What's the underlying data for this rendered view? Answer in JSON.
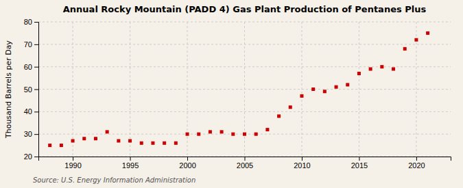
{
  "chart_data": {
    "type": "scatter",
    "title": "Annual Rocky Mountain (PADD 4) Gas Plant Production of Pentanes Plus",
    "ylabel": "Thousand Barrels per Day",
    "annotations": [
      "Source: U.S. Energy Information Administration"
    ],
    "x": [
      1988,
      1989,
      1990,
      1991,
      1992,
      1993,
      1994,
      1995,
      1996,
      1997,
      1998,
      1999,
      2000,
      2001,
      2002,
      2003,
      2004,
      2005,
      2006,
      2007,
      2008,
      2009,
      2010,
      2011,
      2012,
      2013,
      2014,
      2015,
      2016,
      2017,
      2018,
      2019,
      2020,
      2021
    ],
    "values": [
      25,
      25,
      27,
      28,
      28,
      31,
      27,
      27,
      26,
      26,
      26,
      26,
      30,
      30,
      31,
      31,
      30,
      30,
      30,
      32,
      38,
      42,
      47,
      50,
      49,
      51,
      52,
      57,
      59,
      60,
      59,
      68,
      72,
      75
    ],
    "color": "#cc0000",
    "marker": "square",
    "xlim": [
      1987,
      2023
    ],
    "ylim": [
      20,
      80
    ],
    "xticks": [
      1990,
      1995,
      2000,
      2005,
      2010,
      2015,
      2020
    ],
    "yticks": [
      20,
      30,
      40,
      50,
      60,
      70,
      80
    ],
    "grid": true
  }
}
